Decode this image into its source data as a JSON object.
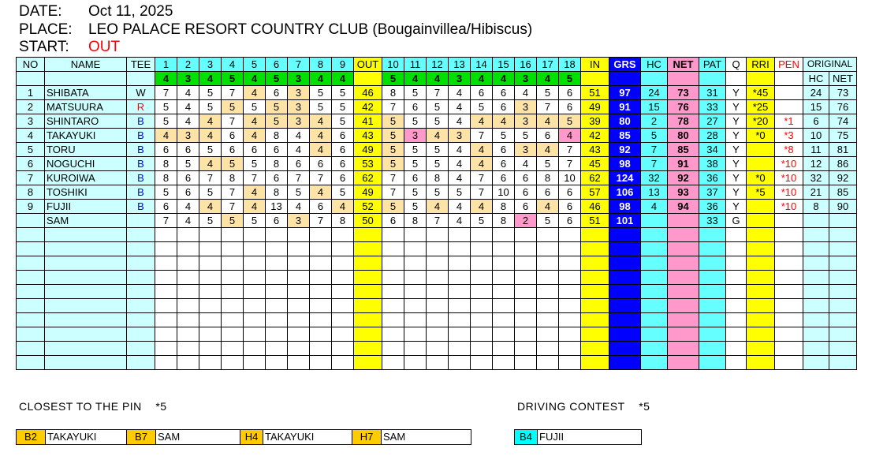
{
  "header": {
    "date_label": "DATE:",
    "date": "Oct 11, 2025",
    "place_label": "PLACE:",
    "place": "LEO PALACE RESORT COUNTRY CLUB (Bougainvillea/Hibiscus)",
    "start_label": "START:",
    "start": "OUT"
  },
  "columns": {
    "no": "NO",
    "name": "NAME",
    "tee": "TEE",
    "holes_out": [
      "1",
      "2",
      "3",
      "4",
      "5",
      "6",
      "7",
      "8",
      "9"
    ],
    "out": "OUT",
    "holes_in": [
      "10",
      "11",
      "12",
      "13",
      "14",
      "15",
      "16",
      "17",
      "18"
    ],
    "in": "IN",
    "grs": "GRS",
    "hc": "HC",
    "net": "NET",
    "pat": "PAT",
    "q": "Q",
    "rri": "RRI",
    "pen": "PEN",
    "original": "ORIGINAL",
    "orig_hc": "HC",
    "orig_net": "NET"
  },
  "par": [
    4,
    3,
    4,
    5,
    4,
    5,
    3,
    4,
    4,
    5,
    4,
    4,
    3,
    4,
    4,
    3,
    4,
    5
  ],
  "players": [
    {
      "no": "1",
      "name": "SHIBATA",
      "tee": "W",
      "scores": [
        7,
        4,
        5,
        7,
        4,
        6,
        3,
        5,
        5,
        8,
        5,
        7,
        4,
        6,
        6,
        4,
        5,
        6
      ],
      "out": "46",
      "in": "51",
      "grs": "97",
      "hc": "24",
      "net": "73",
      "pat": "31",
      "q": "Y",
      "rri": "*45",
      "pen": "",
      "orig_hc": "24",
      "orig_net": "73"
    },
    {
      "no": "2",
      "name": "MATSUURA",
      "tee": "R",
      "scores": [
        5,
        4,
        5,
        5,
        5,
        5,
        3,
        5,
        5,
        7,
        6,
        5,
        4,
        5,
        6,
        3,
        7,
        6
      ],
      "out": "42",
      "in": "49",
      "grs": "91",
      "hc": "15",
      "net": "76",
      "pat": "33",
      "q": "Y",
      "rri": "*25",
      "pen": "",
      "orig_hc": "15",
      "orig_net": "76"
    },
    {
      "no": "3",
      "name": "SHINTARO",
      "tee": "B",
      "scores": [
        5,
        4,
        4,
        7,
        4,
        5,
        3,
        4,
        5,
        5,
        5,
        5,
        4,
        4,
        4,
        3,
        4,
        5
      ],
      "out": "41",
      "in": "39",
      "grs": "80",
      "hc": "2",
      "net": "78",
      "pat": "27",
      "q": "Y",
      "rri": "*20",
      "pen": "*1",
      "orig_hc": "6",
      "orig_net": "74"
    },
    {
      "no": "4",
      "name": "TAKAYUKI",
      "tee": "B",
      "scores": [
        4,
        3,
        4,
        6,
        4,
        8,
        4,
        4,
        6,
        5,
        3,
        4,
        3,
        7,
        5,
        5,
        6,
        4
      ],
      "out": "43",
      "in": "42",
      "grs": "85",
      "hc": "5",
      "net": "80",
      "pat": "28",
      "q": "Y",
      "rri": "*0",
      "pen": "*3",
      "orig_hc": "10",
      "orig_net": "75"
    },
    {
      "no": "5",
      "name": "TORU",
      "tee": "B",
      "scores": [
        6,
        6,
        5,
        6,
        6,
        6,
        4,
        4,
        6,
        5,
        5,
        5,
        4,
        4,
        6,
        3,
        4,
        7
      ],
      "out": "49",
      "in": "43",
      "grs": "92",
      "hc": "7",
      "net": "85",
      "pat": "34",
      "q": "Y",
      "rri": "",
      "pen": "*8",
      "orig_hc": "11",
      "orig_net": "81"
    },
    {
      "no": "6",
      "name": "NOGUCHI",
      "tee": "B",
      "scores": [
        8,
        5,
        4,
        5,
        5,
        8,
        6,
        6,
        6,
        5,
        5,
        5,
        4,
        4,
        6,
        4,
        5,
        7
      ],
      "out": "53",
      "in": "45",
      "grs": "98",
      "hc": "7",
      "net": "91",
      "pat": "38",
      "q": "Y",
      "rri": "",
      "pen": "*10",
      "orig_hc": "12",
      "orig_net": "86"
    },
    {
      "no": "7",
      "name": "KUROIWA",
      "tee": "B",
      "scores": [
        8,
        6,
        7,
        8,
        7,
        6,
        7,
        7,
        6,
        7,
        6,
        8,
        4,
        7,
        6,
        6,
        8,
        10
      ],
      "out": "62",
      "in": "62",
      "grs": "124",
      "hc": "32",
      "net": "92",
      "pat": "36",
      "q": "Y",
      "rri": "*0",
      "pen": "*10",
      "orig_hc": "32",
      "orig_net": "92"
    },
    {
      "no": "8",
      "name": "TOSHIKI",
      "tee": "B",
      "scores": [
        5,
        6,
        5,
        7,
        4,
        8,
        5,
        4,
        5,
        7,
        5,
        5,
        5,
        7,
        10,
        6,
        6,
        6
      ],
      "out": "49",
      "in": "57",
      "grs": "106",
      "hc": "13",
      "net": "93",
      "pat": "37",
      "q": "Y",
      "rri": "*5",
      "pen": "*10",
      "orig_hc": "21",
      "orig_net": "85"
    },
    {
      "no": "9",
      "name": "FUJII",
      "tee": "B",
      "scores": [
        6,
        4,
        4,
        7,
        4,
        13,
        4,
        6,
        4,
        5,
        5,
        4,
        4,
        4,
        8,
        6,
        4,
        6
      ],
      "out": "52",
      "in": "46",
      "grs": "98",
      "hc": "4",
      "net": "94",
      "pat": "36",
      "q": "Y",
      "rri": "",
      "pen": "*10",
      "orig_hc": "8",
      "orig_net": "90"
    },
    {
      "no": "",
      "name": "SAM",
      "tee": "",
      "scores": [
        7,
        4,
        5,
        5,
        5,
        6,
        3,
        7,
        8,
        6,
        8,
        7,
        4,
        5,
        8,
        2,
        5,
        6
      ],
      "out": "50",
      "in": "51",
      "grs": "101",
      "hc": "",
      "net": "",
      "pat": "33",
      "q": "G",
      "rri": "",
      "pen": "",
      "orig_hc": "",
      "orig_net": ""
    }
  ],
  "closest": {
    "title": "CLOSEST TO THE PIN",
    "points": "*5",
    "entries": [
      {
        "hole": "B2",
        "name": "TAKAYUKI"
      },
      {
        "hole": "B7",
        "name": "SAM"
      },
      {
        "hole": "H4",
        "name": "TAKAYUKI"
      },
      {
        "hole": "H7",
        "name": "SAM"
      }
    ]
  },
  "driving": {
    "title": "DRIVING CONTEST",
    "points": "*5",
    "entries": [
      {
        "hole": "B4",
        "name": "FUJII"
      }
    ]
  },
  "colors": {
    "header": "#66ffff",
    "name_bg": "#ccffff",
    "par_row": "#00e000",
    "subtotal": "#ffff00",
    "gross": "#0000ff",
    "net": "#ff99cc",
    "par_score": "#fde3a6",
    "birdie": "#ff99cc",
    "penalty": "#ff0000"
  }
}
